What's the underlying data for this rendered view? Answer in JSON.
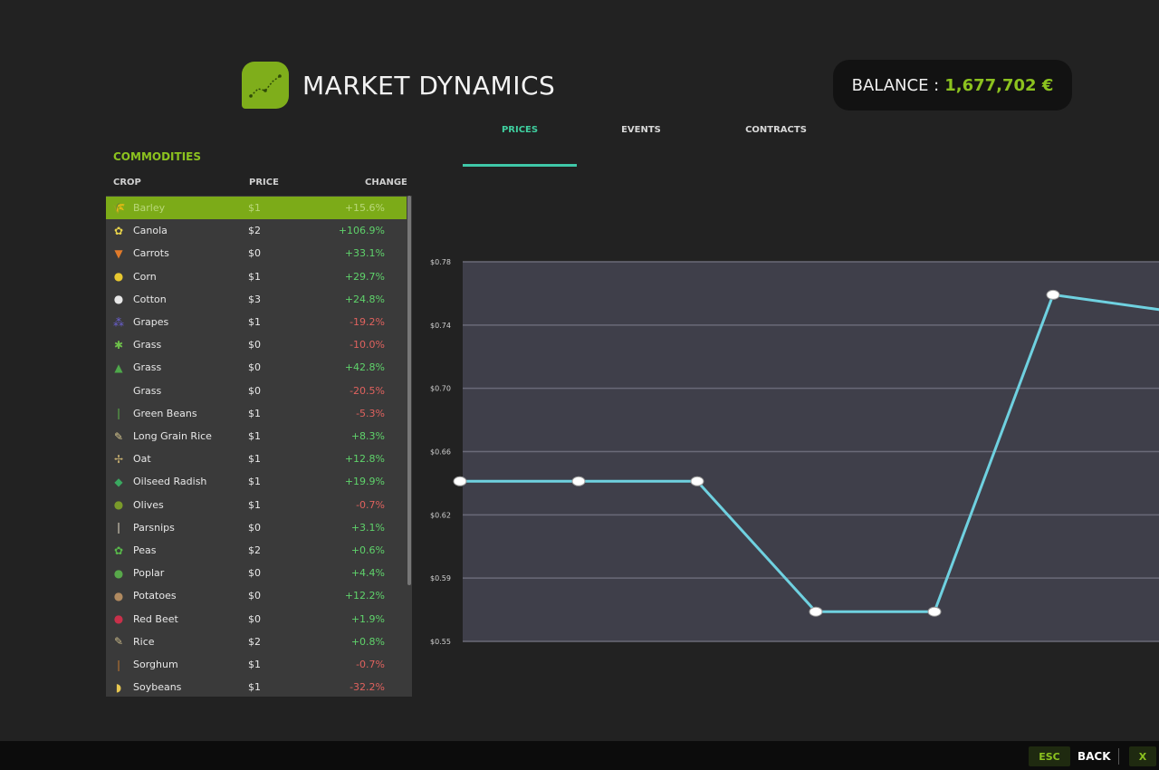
{
  "header": {
    "title": "MARKET DYNAMICS",
    "balance_label": "BALANCE :",
    "balance_value": "1,677,702 €"
  },
  "tabs": [
    {
      "label": "PRICES",
      "active": true
    },
    {
      "label": "EVENTS",
      "active": false
    },
    {
      "label": "CONTRACTS",
      "active": false
    }
  ],
  "commodities": {
    "title": "COMMODITIES",
    "columns": [
      "CROP",
      "PRICE",
      "CHANGE"
    ],
    "rows": [
      {
        "icon": "barley-icon",
        "name": "Barley",
        "price": "$1",
        "change": "+15.6%",
        "selected": true
      },
      {
        "icon": "canola-icon",
        "name": "Canola",
        "price": "$2",
        "change": "+106.9%"
      },
      {
        "icon": "carrot-icon",
        "name": "Carrots",
        "price": "$0",
        "change": "+33.1%"
      },
      {
        "icon": "corn-icon",
        "name": "Corn",
        "price": "$1",
        "change": "+29.7%"
      },
      {
        "icon": "cotton-icon",
        "name": "Cotton",
        "price": "$3",
        "change": "+24.8%"
      },
      {
        "icon": "grapes-icon",
        "name": "Grapes",
        "price": "$1",
        "change": "-19.2%"
      },
      {
        "icon": "grass-icon",
        "name": "Grass",
        "price": "$0",
        "change": "-10.0%"
      },
      {
        "icon": "grass-bale-icon",
        "name": "Grass",
        "price": "$0",
        "change": "+42.8%"
      },
      {
        "icon": "",
        "name": "Grass",
        "price": "$0",
        "change": "-20.5%"
      },
      {
        "icon": "green-beans-icon",
        "name": "Green Beans",
        "price": "$1",
        "change": "-5.3%"
      },
      {
        "icon": "long-grain-rice-icon",
        "name": "Long Grain Rice",
        "price": "$1",
        "change": "+8.3%"
      },
      {
        "icon": "oat-icon",
        "name": "Oat",
        "price": "$1",
        "change": "+12.8%"
      },
      {
        "icon": "oilseed-radish-icon",
        "name": "Oilseed Radish",
        "price": "$1",
        "change": "+19.9%"
      },
      {
        "icon": "olives-icon",
        "name": "Olives",
        "price": "$1",
        "change": "-0.7%"
      },
      {
        "icon": "parsnip-icon",
        "name": "Parsnips",
        "price": "$0",
        "change": "+3.1%"
      },
      {
        "icon": "peas-icon",
        "name": "Peas",
        "price": "$2",
        "change": "+0.6%"
      },
      {
        "icon": "poplar-icon",
        "name": "Poplar",
        "price": "$0",
        "change": "+4.4%"
      },
      {
        "icon": "potato-icon",
        "name": "Potatoes",
        "price": "$0",
        "change": "+12.2%"
      },
      {
        "icon": "red-beet-icon",
        "name": "Red Beet",
        "price": "$0",
        "change": "+1.9%"
      },
      {
        "icon": "rice-icon",
        "name": "Rice",
        "price": "$2",
        "change": "+0.8%"
      },
      {
        "icon": "sorghum-icon",
        "name": "Sorghum",
        "price": "$1",
        "change": "-0.7%"
      },
      {
        "icon": "soybeans-icon",
        "name": "Soybeans",
        "price": "$1",
        "change": "-32.2%"
      }
    ]
  },
  "chart_data": {
    "type": "line",
    "ylim": [
      0.55,
      0.78
    ],
    "yticks": [
      "$0.78",
      "$0.74",
      "$0.70",
      "$0.66",
      "$0.62",
      "$0.59",
      "$0.55"
    ],
    "series": [
      {
        "values": [
          0.647,
          0.647,
          0.647,
          0.568,
          0.568,
          0.76,
          0.75
        ]
      }
    ],
    "line_color": "#6fd1e0",
    "plot_bg": "#3f3f4a",
    "grid": true
  },
  "footer": {
    "esc_key": "ESC",
    "back_label": "BACK",
    "x_key": "X"
  },
  "colors": {
    "accent": "#8cc21f",
    "positive": "#5fd36b",
    "negative": "#e0625e"
  }
}
